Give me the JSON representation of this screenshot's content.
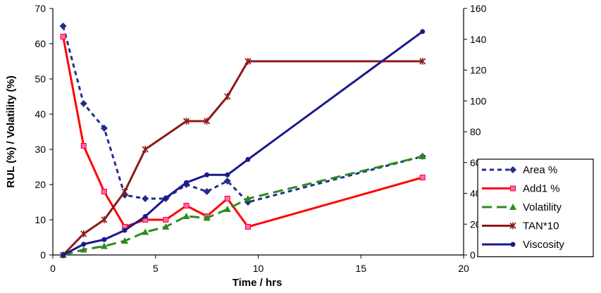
{
  "chart_data": {
    "type": "line",
    "xlabel": "Time / hrs",
    "ylabel": "RUL (%) / Volatility (%)",
    "xlim": [
      0,
      20
    ],
    "ylim_left": [
      0,
      70
    ],
    "ylim_right": [
      0,
      160
    ],
    "x_ticks": [
      "0",
      "5",
      "10",
      "15",
      "20"
    ],
    "y_ticks_left": [
      "0",
      "10",
      "20",
      "30",
      "40",
      "50",
      "60",
      "70"
    ],
    "y_ticks_right": [
      "0",
      "20",
      "40",
      "60",
      "80",
      "100",
      "120",
      "140",
      "160"
    ],
    "legend_position": "bottom-right",
    "grid": false,
    "series": [
      {
        "name": "Area %",
        "axis": "left",
        "color": "#1f2f8c",
        "dash": "dashed",
        "marker": "diamond",
        "x": [
          0.5,
          1.5,
          2.5,
          3.5,
          4.5,
          5.5,
          6.5,
          7.5,
          8.5,
          9.5,
          18
        ],
        "y": [
          65,
          43,
          36,
          17,
          16,
          16,
          20,
          18,
          21,
          15,
          28
        ]
      },
      {
        "name": "Add1 %",
        "axis": "left",
        "color": "#ff0000",
        "dash": "solid",
        "marker": "square",
        "x": [
          0.5,
          1.5,
          2.5,
          3.5,
          4.5,
          5.5,
          6.5,
          7.5,
          8.5,
          9.5,
          18
        ],
        "y": [
          62,
          31,
          18,
          8,
          10,
          10,
          14,
          11,
          16,
          8,
          22
        ]
      },
      {
        "name": "Volatility",
        "axis": "left",
        "color": "#2e8b1e",
        "dash": "longdash",
        "marker": "triangle",
        "x": [
          0.5,
          1.5,
          2.5,
          3.5,
          4.5,
          5.5,
          6.5,
          7.5,
          8.5,
          9.5,
          18
        ],
        "y": [
          0,
          1.5,
          2.5,
          4,
          6.5,
          8,
          11,
          10.5,
          13,
          16,
          28
        ]
      },
      {
        "name": "TAN*10",
        "axis": "left",
        "color": "#8b1a1a",
        "dash": "solid",
        "marker": "star",
        "x": [
          0.5,
          1.5,
          2.5,
          3.5,
          4.5,
          6.5,
          7.5,
          8.5,
          9.5,
          18
        ],
        "y": [
          0,
          6,
          10,
          18,
          30,
          38,
          38,
          45,
          55,
          55
        ]
      },
      {
        "name": "Viscosity",
        "axis": "right",
        "color": "#1a1a8c",
        "dash": "solid",
        "marker": "circle",
        "x": [
          0.5,
          1.5,
          2.5,
          3.5,
          4.5,
          5.5,
          6.5,
          7.5,
          8.5,
          9.5,
          18
        ],
        "y": [
          0,
          7,
          10,
          16,
          25,
          37,
          47,
          52,
          52,
          62,
          145
        ]
      }
    ]
  }
}
